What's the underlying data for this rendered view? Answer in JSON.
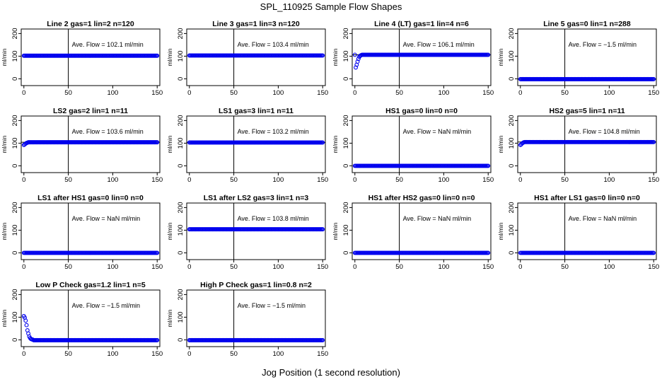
{
  "title": "SPL_110925  Sample Flow Shapes",
  "xlabel": "Jog Position (1 second resolution)",
  "colors": {
    "points": "#0000ee",
    "axis": "#000000",
    "background": "#ffffff"
  },
  "chart_data": [
    {
      "type": "scatter",
      "title": "Line 2 gas=1 lin=2 n=120",
      "ylabel": "ml/min",
      "note": "Ave. Flow = 102.1  ml/min",
      "xlim": [
        -3,
        153
      ],
      "ylim": [
        -30,
        220
      ],
      "xticks": [
        0,
        50,
        100,
        150
      ],
      "yticks": [
        0,
        100,
        200
      ],
      "vline": 50,
      "hline": null,
      "series": [
        {
          "name": "flow",
          "x_range": [
            0,
            150
          ],
          "level": 102
        }
      ]
    },
    {
      "type": "scatter",
      "title": "Line 3 gas=1 lin=3 n=120",
      "ylabel": "ml/min",
      "note": "Ave. Flow = 103.4  ml/min",
      "xlim": [
        -3,
        153
      ],
      "ylim": [
        -30,
        220
      ],
      "xticks": [
        0,
        50,
        100,
        150
      ],
      "yticks": [
        0,
        100,
        200
      ],
      "vline": 50,
      "hline": null,
      "series": [
        {
          "name": "flow",
          "x_range": [
            0,
            150
          ],
          "level": 103
        }
      ]
    },
    {
      "type": "scatter",
      "title": "Line 4 (LT) gas=1 lin=4 n=6",
      "ylabel": "ml/min",
      "note": "Ave. Flow = 106.1  ml/min",
      "xlim": [
        -3,
        153
      ],
      "ylim": [
        -30,
        220
      ],
      "xticks": [
        0,
        50,
        100,
        150
      ],
      "yticks": [
        0,
        100,
        200
      ],
      "vline": 50,
      "hline": 106,
      "series": [
        {
          "name": "flow",
          "x_range": [
            0,
            150
          ],
          "level": 106,
          "ramp": [
            [
              1,
              50
            ],
            [
              2,
              62
            ],
            [
              3,
              76
            ],
            [
              4,
              88
            ],
            [
              5,
              97
            ],
            [
              6,
              102
            ],
            [
              7,
              104
            ]
          ]
        }
      ]
    },
    {
      "type": "scatter",
      "title": "Line 5 gas=0 lin=1 n=288",
      "ylabel": "ml/min",
      "note": "Ave. Flow = −1.5  ml/min",
      "xlim": [
        -3,
        153
      ],
      "ylim": [
        -30,
        220
      ],
      "xticks": [
        0,
        50,
        100,
        150
      ],
      "yticks": [
        0,
        100,
        200
      ],
      "vline": 50,
      "hline": -1.5,
      "series": [
        {
          "name": "flow",
          "x_range": [
            0,
            150
          ],
          "level": -1.5
        }
      ]
    },
    {
      "type": "scatter",
      "title": "LS2 gas=2 lin=1 n=11",
      "ylabel": "ml/min",
      "note": "Ave. Flow = 103.6  ml/min",
      "xlim": [
        -3,
        153
      ],
      "ylim": [
        -30,
        220
      ],
      "xticks": [
        0,
        50,
        100,
        150
      ],
      "yticks": [
        0,
        100,
        200
      ],
      "vline": 50,
      "hline": 104,
      "series": [
        {
          "name": "flow",
          "x_range": [
            0,
            150
          ],
          "level": 104,
          "ramp": [
            [
              0,
              92
            ],
            [
              1,
              95
            ],
            [
              2,
              98
            ],
            [
              3,
              101
            ],
            [
              4,
              102
            ]
          ]
        }
      ]
    },
    {
      "type": "scatter",
      "title": "LS1 gas=3 lin=1 n=11",
      "ylabel": "ml/min",
      "note": "Ave. Flow = 103.2  ml/min",
      "xlim": [
        -3,
        153
      ],
      "ylim": [
        -30,
        220
      ],
      "xticks": [
        0,
        50,
        100,
        150
      ],
      "yticks": [
        0,
        100,
        200
      ],
      "vline": 50,
      "hline": 103,
      "series": [
        {
          "name": "flow",
          "x_range": [
            0,
            150
          ],
          "level": 103
        }
      ]
    },
    {
      "type": "scatter",
      "title": "HS1 gas=0 lin=0 n=0",
      "ylabel": "ml/min",
      "note": "Ave. Flow = NaN  ml/min",
      "xlim": [
        -3,
        153
      ],
      "ylim": [
        -30,
        220
      ],
      "xticks": [
        0,
        50,
        100,
        150
      ],
      "yticks": [
        0,
        100,
        200
      ],
      "vline": 50,
      "hline": null,
      "series": [
        {
          "name": "flow",
          "x_range": [
            0,
            150
          ],
          "level": 0
        }
      ]
    },
    {
      "type": "scatter",
      "title": "HS2 gas=5 lin=1 n=11",
      "ylabel": "ml/min",
      "note": "Ave. Flow = 104.8  ml/min",
      "xlim": [
        -3,
        153
      ],
      "ylim": [
        -30,
        220
      ],
      "xticks": [
        0,
        50,
        100,
        150
      ],
      "yticks": [
        0,
        100,
        200
      ],
      "vline": 50,
      "hline": 105,
      "series": [
        {
          "name": "flow",
          "x_range": [
            0,
            150
          ],
          "level": 105,
          "ramp": [
            [
              0,
              92
            ],
            [
              1,
              95
            ],
            [
              2,
              99
            ],
            [
              3,
              102
            ],
            [
              4,
              104
            ]
          ]
        }
      ]
    },
    {
      "type": "scatter",
      "title": "LS1 after HS1 gas=0 lin=0 n=0",
      "ylabel": "ml/min",
      "note": "Ave. Flow =  NaN  ml/min",
      "xlim": [
        -3,
        153
      ],
      "ylim": [
        -30,
        220
      ],
      "xticks": [
        0,
        50,
        100,
        150
      ],
      "yticks": [
        0,
        100,
        200
      ],
      "vline": 50,
      "hline": null,
      "series": [
        {
          "name": "flow",
          "x_range": [
            0,
            150
          ],
          "level": 0
        }
      ]
    },
    {
      "type": "scatter",
      "title": "LS1 after LS2 gas=3 lin=1 n=3",
      "ylabel": "ml/min",
      "note": "Ave. Flow = 103.8  ml/min",
      "xlim": [
        -3,
        153
      ],
      "ylim": [
        -30,
        220
      ],
      "xticks": [
        0,
        50,
        100,
        150
      ],
      "yticks": [
        0,
        100,
        200
      ],
      "vline": 50,
      "hline": null,
      "series": [
        {
          "name": "flow",
          "x_range": [
            0,
            150
          ],
          "level": 104
        }
      ]
    },
    {
      "type": "scatter",
      "title": "HS1 after HS2 gas=0 lin=0 n=0",
      "ylabel": "ml/min",
      "note": "Ave. Flow = NaN  ml/min",
      "xlim": [
        -3,
        153
      ],
      "ylim": [
        -30,
        220
      ],
      "xticks": [
        0,
        50,
        100,
        150
      ],
      "yticks": [
        0,
        100,
        200
      ],
      "vline": 50,
      "hline": null,
      "series": [
        {
          "name": "flow",
          "x_range": [
            0,
            150
          ],
          "level": 0
        }
      ]
    },
    {
      "type": "scatter",
      "title": "HS1 after LS1 gas=0 lin=0 n=0",
      "ylabel": "ml/min",
      "note": "Ave. Flow =  NaN  ml/min",
      "xlim": [
        -3,
        153
      ],
      "ylim": [
        -30,
        220
      ],
      "xticks": [
        0,
        50,
        100,
        150
      ],
      "yticks": [
        0,
        100,
        200
      ],
      "vline": 50,
      "hline": null,
      "series": [
        {
          "name": "flow",
          "x_range": [
            0,
            150
          ],
          "level": 0
        }
      ]
    },
    {
      "type": "scatter",
      "title": "Low P Check gas=1.2 lin=1 n=5",
      "ylabel": "ml/min",
      "note": "Ave. Flow = −1.5  ml/min",
      "xlim": [
        -3,
        153
      ],
      "ylim": [
        -30,
        220
      ],
      "xticks": [
        0,
        50,
        100,
        150
      ],
      "yticks": [
        0,
        100,
        200
      ],
      "vline": 50,
      "hline": null,
      "series": [
        {
          "name": "flow",
          "x_range": [
            0,
            150
          ],
          "level": -1.5,
          "ramp": [
            [
              0,
              105
            ],
            [
              1,
              98
            ],
            [
              2,
              85
            ],
            [
              3,
              65
            ],
            [
              4,
              42
            ],
            [
              5,
              28
            ],
            [
              6,
              15
            ],
            [
              7,
              8
            ],
            [
              8,
              4
            ],
            [
              9,
              2
            ],
            [
              10,
              1
            ]
          ]
        }
      ]
    },
    {
      "type": "scatter",
      "title": "High P Check gas=1 lin=0.8 n=2",
      "ylabel": "ml/min",
      "note": "Ave. Flow = −1.5  ml/min",
      "xlim": [
        -3,
        153
      ],
      "ylim": [
        -30,
        220
      ],
      "xticks": [
        0,
        50,
        100,
        150
      ],
      "yticks": [
        0,
        100,
        200
      ],
      "vline": 50,
      "hline": null,
      "series": [
        {
          "name": "flow",
          "x_range": [
            0,
            150
          ],
          "level": -1.5
        }
      ]
    }
  ]
}
